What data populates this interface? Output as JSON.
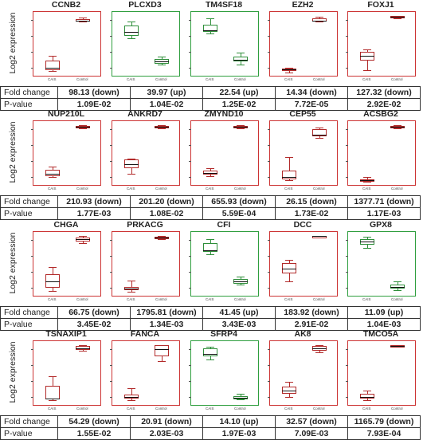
{
  "labels": {
    "y_axis": "Log2 expression",
    "fold_change": "Fold change",
    "p_value": "P-value",
    "cat_a": "CAIS",
    "cat_b": "Control"
  },
  "legend_colors": {
    "down": "#cc3333",
    "up": "#2e9e3e"
  },
  "blocks": [
    {
      "genes": [
        {
          "name": "CCNB2",
          "fold": "98.13 (down)",
          "p": "1.09E-02",
          "dir": "down"
        },
        {
          "name": "PLCXD3",
          "fold": "39.97 (up)",
          "p": "1.04E-02",
          "dir": "up"
        },
        {
          "name": "TM4SF18",
          "fold": "22.54 (up)",
          "p": "1.25E-02",
          "dir": "up"
        },
        {
          "name": "EZH2",
          "fold": "14.34 (down)",
          "p": "7.72E-05",
          "dir": "down"
        },
        {
          "name": "FOXJ1",
          "fold": "127.32 (down)",
          "p": "2.92E-02",
          "dir": "down"
        }
      ]
    },
    {
      "genes": [
        {
          "name": "NUP210L",
          "fold": "210.93 (down)",
          "p": "1.77E-03",
          "dir": "down"
        },
        {
          "name": "ANKRD7",
          "fold": "201.20 (down)",
          "p": "1.08E-02",
          "dir": "down"
        },
        {
          "name": "ZMYND10",
          "fold": "655.93 (down)",
          "p": "5.59E-04",
          "dir": "down"
        },
        {
          "name": "CEP55",
          "fold": "26.15 (down)",
          "p": "1.73E-02",
          "dir": "down"
        },
        {
          "name": "ACSBG2",
          "fold": "1377.71 (down)",
          "p": "1.17E-03",
          "dir": "down"
        }
      ]
    },
    {
      "genes": [
        {
          "name": "CHGA",
          "fold": "66.75 (down)",
          "p": "3.45E-02",
          "dir": "down"
        },
        {
          "name": "PRKACG",
          "fold": "1795.81 (down)",
          "p": "1.34E-03",
          "dir": "down"
        },
        {
          "name": "CFI",
          "fold": "41.45 (up)",
          "p": "3.43E-03",
          "dir": "up"
        },
        {
          "name": "DCC",
          "fold": "183.92 (down)",
          "p": "2.91E-02",
          "dir": "down"
        },
        {
          "name": "GPX8",
          "fold": "11.09 (up)",
          "p": "1.04E-03",
          "dir": "up"
        }
      ]
    },
    {
      "genes": [
        {
          "name": "TSNAXIP1",
          "fold": "54.29 (down)",
          "p": "1.55E-02",
          "dir": "down"
        },
        {
          "name": "FANCA",
          "fold": "20.91 (down)",
          "p": "2.03E-03",
          "dir": "down"
        },
        {
          "name": "SFRP4",
          "fold": "14.10 (up)",
          "p": "1.97E-03",
          "dir": "up"
        },
        {
          "name": "AK8",
          "fold": "32.57 (down)",
          "p": "7.09E-03",
          "dir": "down"
        },
        {
          "name": "TMCO5A",
          "fold": "1165.79 (down)",
          "p": "7.93E-04",
          "dir": "down"
        }
      ]
    }
  ]
}
